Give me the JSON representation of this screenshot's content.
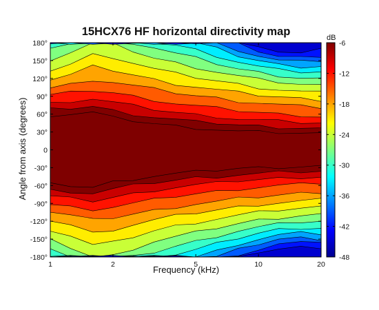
{
  "chart_data": {
    "type": "heatmap",
    "subtype": "filled-contour",
    "title": "15HCX76 HF horizontal directivity map",
    "xlabel": "Frequency (kHz)",
    "ylabel": "Angle from axis (degrees)",
    "x_scale": "log",
    "xlim": [
      1,
      20
    ],
    "ylim": [
      -180,
      180
    ],
    "x_ticks": [
      1,
      2,
      5,
      10,
      20
    ],
    "x_tick_labels": [
      "1",
      "2",
      "5",
      "10",
      "20"
    ],
    "y_ticks": [
      180,
      150,
      120,
      90,
      60,
      30,
      0,
      -30,
      -60,
      -90,
      -120,
      -150,
      -180
    ],
    "y_tick_labels": [
      "180°",
      "150°",
      "120°",
      "90°",
      "60°",
      "30°",
      "0",
      "-30°",
      "-60°",
      "-90°",
      "-120°",
      "-150°",
      "-180°"
    ],
    "colorbar": {
      "unit": "dB",
      "range": [
        -48,
        -6
      ],
      "ticks": [
        -6,
        -12,
        -18,
        -24,
        -30,
        -36,
        -42,
        -48
      ],
      "tick_labels": [
        "-6",
        "-12",
        "-18",
        "-24",
        "-30",
        "-36",
        "-42",
        "-48"
      ],
      "colormap": "jet"
    },
    "contour_levels_db": [
      -3,
      -6,
      -9,
      -12,
      -15,
      -18,
      -21,
      -24,
      -27,
      -30,
      -33,
      -36,
      -39,
      -42
    ],
    "frequencies_khz": [
      1,
      1.25,
      1.6,
      2,
      2.5,
      3.15,
      4,
      5,
      6.3,
      8,
      10,
      12.5,
      16,
      20
    ],
    "contour_angle_deg": [
      {
        "level_db": -3,
        "angle": [
          58,
          60,
          63,
          54,
          49,
          44,
          40,
          37,
          34,
          31,
          30,
          29,
          28,
          27
        ]
      },
      {
        "level_db": -6,
        "angle": [
          68,
          70,
          73,
          66,
          60,
          55,
          51,
          47,
          45,
          42,
          40,
          38,
          37,
          36
        ]
      },
      {
        "level_db": -9,
        "angle": [
          78,
          82,
          86,
          80,
          74,
          68,
          63,
          59,
          56,
          52,
          50,
          48,
          46,
          45
        ]
      },
      {
        "level_db": -12,
        "angle": [
          92,
          96,
          100,
          96,
          90,
          84,
          78,
          74,
          70,
          66,
          63,
          60,
          58,
          56
        ]
      },
      {
        "level_db": -15,
        "angle": [
          104,
          110,
          118,
          114,
          108,
          102,
          96,
          91,
          87,
          82,
          79,
          76,
          73,
          71
        ]
      },
      {
        "level_db": -18,
        "angle": [
          118,
          126,
          140,
          134,
          126,
          118,
          111,
          106,
          101,
          96,
          92,
          89,
          86,
          84
        ]
      },
      {
        "level_db": -21,
        "angle": [
          134,
          144,
          160,
          156,
          146,
          136,
          128,
          122,
          116,
          110,
          105,
          101,
          98,
          96
        ]
      },
      {
        "level_db": -24,
        "angle": [
          152,
          164,
          180,
          178,
          166,
          154,
          146,
          139,
          131,
          124,
          118,
          114,
          110,
          108
        ]
      },
      {
        "level_db": -27,
        "angle": [
          168,
          180,
          180,
          180,
          180,
          172,
          162,
          154,
          145,
          136,
          130,
          125,
          121,
          120
        ]
      },
      {
        "level_db": -30,
        "angle": [
          180,
          180,
          180,
          180,
          180,
          180,
          176,
          168,
          158,
          148,
          140,
          134,
          131,
          131
        ]
      },
      {
        "level_db": -33,
        "angle": [
          180,
          180,
          180,
          180,
          180,
          180,
          180,
          180,
          170,
          158,
          150,
          143,
          140,
          141
        ]
      },
      {
        "level_db": -36,
        "angle": [
          180,
          180,
          180,
          180,
          180,
          180,
          180,
          180,
          180,
          168,
          158,
          150,
          148,
          150
        ]
      },
      {
        "level_db": -39,
        "angle": [
          180,
          180,
          180,
          180,
          180,
          180,
          180,
          180,
          180,
          180,
          166,
          157,
          155,
          158
        ]
      },
      {
        "level_db": -42,
        "angle": [
          180,
          180,
          180,
          180,
          180,
          180,
          180,
          180,
          180,
          180,
          176,
          165,
          162,
          168
        ]
      }
    ],
    "colors": {
      "plot_background": "#7f0000",
      "jet": [
        "#00008f",
        "#0000ff",
        "#0080ff",
        "#00ffff",
        "#80ff80",
        "#ffff00",
        "#ff8000",
        "#ff0000",
        "#800000"
      ]
    }
  }
}
